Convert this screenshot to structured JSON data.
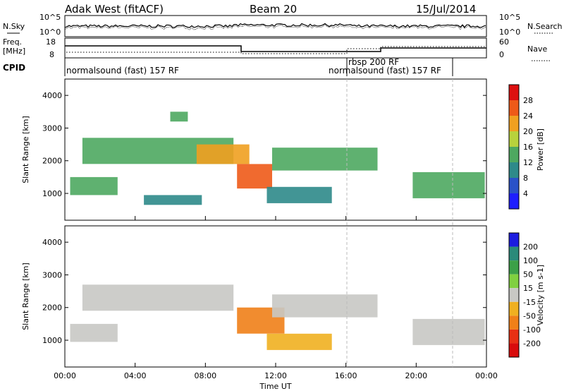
{
  "header": {
    "station": "Adak West (fitACF)",
    "beam": "Beam 20",
    "date": "15/Jul/2014"
  },
  "noise_panel": {
    "left_label": "N.Sky",
    "right_label": "N.Search",
    "left_ticks": [
      "10^5",
      "10^0"
    ],
    "right_ticks": [
      "10^5",
      "10^0"
    ]
  },
  "freq_panel": {
    "left_label_line1": "Freq.",
    "left_label_line2": "[MHz]",
    "right_label": "Nave",
    "left_ticks": [
      "18",
      "8"
    ],
    "right_ticks": [
      "60",
      "0"
    ]
  },
  "cpid": {
    "label": "CPID",
    "modes": [
      "normalsound (fast) 157 RF",
      "rbsp 200 RF",
      "normalsound (fast) 157 RF"
    ]
  },
  "chart_data": [
    {
      "type": "heatmap",
      "ylabel": "Slant Range [km]",
      "x": [
        "00:00",
        "04:00",
        "08:00",
        "12:00",
        "16:00",
        "20:00",
        "00:00"
      ],
      "xlabel": "Time UT",
      "ylim": [
        180,
        4500
      ],
      "yticks": [
        1000,
        2000,
        3000,
        4000
      ],
      "colorbar": {
        "label": "Power [dB]",
        "ticks": [
          4,
          8,
          12,
          16,
          20,
          24,
          28
        ],
        "colors": [
          "#1e1eff",
          "#2a52c8",
          "#2e8a8a",
          "#4ea860",
          "#b8d23c",
          "#f0a020",
          "#ee5a18",
          "#dd1010"
        ]
      },
      "echo_regions": [
        {
          "t": [
            0.3,
            3.0
          ],
          "range": [
            950,
            1500
          ],
          "power_db": 12
        },
        {
          "t": [
            1.0,
            9.6
          ],
          "range": [
            1900,
            2700
          ],
          "power_db": 14
        },
        {
          "t": [
            6.0,
            7.0
          ],
          "range": [
            3200,
            3500
          ],
          "power_db": 12
        },
        {
          "t": [
            7.5,
            10.5
          ],
          "range": [
            1900,
            2500
          ],
          "power_db": 22
        },
        {
          "t": [
            9.8,
            11.8
          ],
          "range": [
            1150,
            1900
          ],
          "power_db": 26
        },
        {
          "t": [
            11.8,
            17.8
          ],
          "range": [
            1700,
            2400
          ],
          "power_db": 12
        },
        {
          "t": [
            4.5,
            7.8
          ],
          "range": [
            650,
            950
          ],
          "power_db": 10
        },
        {
          "t": [
            11.5,
            15.2
          ],
          "range": [
            700,
            1200
          ],
          "power_db": 9
        },
        {
          "t": [
            19.8,
            23.9
          ],
          "range": [
            850,
            1650
          ],
          "power_db": 12
        }
      ]
    },
    {
      "type": "heatmap",
      "ylabel": "Slant Range [km]",
      "x": [
        "00:00",
        "04:00",
        "08:00",
        "12:00",
        "16:00",
        "20:00",
        "00:00"
      ],
      "xlabel": "Time UT",
      "ylim": [
        180,
        4500
      ],
      "yticks": [
        1000,
        2000,
        3000,
        4000
      ],
      "colorbar": {
        "label": "Velocity [m s-1]",
        "ticks": [
          200,
          100,
          50,
          15,
          -15,
          -50,
          -100,
          -200
        ],
        "colors": [
          "#1c1ce0",
          "#2a8a7a",
          "#3ca048",
          "#80d040",
          "#c8c8c4",
          "#f0b020",
          "#f08018",
          "#e83014",
          "#d80c0c"
        ]
      },
      "echo_regions": [
        {
          "t": [
            0.3,
            3.0
          ],
          "range": [
            950,
            1500
          ],
          "velocity": 0
        },
        {
          "t": [
            1.0,
            9.6
          ],
          "range": [
            1900,
            2700
          ],
          "velocity": 0
        },
        {
          "t": [
            9.8,
            12.5
          ],
          "range": [
            1200,
            2000
          ],
          "velocity": -60
        },
        {
          "t": [
            11.5,
            15.2
          ],
          "range": [
            700,
            1200
          ],
          "velocity": -45
        },
        {
          "t": [
            11.8,
            17.8
          ],
          "range": [
            1700,
            2400
          ],
          "velocity": 0
        },
        {
          "t": [
            19.8,
            23.9
          ],
          "range": [
            850,
            1650
          ],
          "velocity": 0
        }
      ]
    }
  ]
}
